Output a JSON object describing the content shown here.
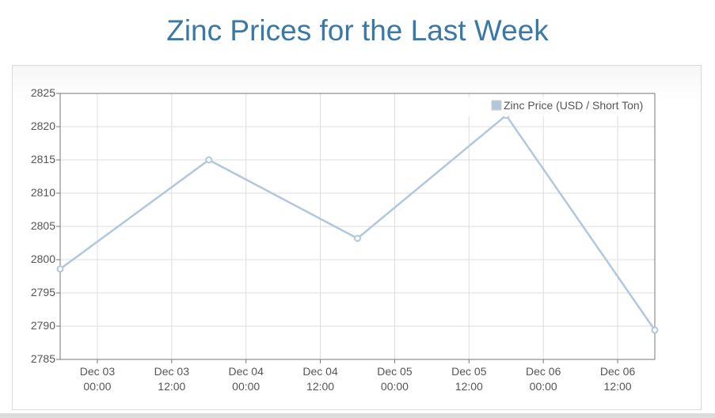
{
  "chart_data": {
    "type": "line",
    "title": "Zinc Prices for the Last Week",
    "x_ticks": [
      {
        "t": 0,
        "line1": "Dec 03",
        "line2": "00:00"
      },
      {
        "t": 12,
        "line1": "Dec 03",
        "line2": "12:00"
      },
      {
        "t": 24,
        "line1": "Dec 04",
        "line2": "00:00"
      },
      {
        "t": 36,
        "line1": "Dec 04",
        "line2": "12:00"
      },
      {
        "t": 48,
        "line1": "Dec 05",
        "line2": "00:00"
      },
      {
        "t": 60,
        "line1": "Dec 05",
        "line2": "12:00"
      },
      {
        "t": 72,
        "line1": "Dec 06",
        "line2": "00:00"
      },
      {
        "t": 84,
        "line1": "Dec 06",
        "line2": "12:00"
      }
    ],
    "xlim": [
      -6,
      90
    ],
    "ylim": [
      2785,
      2825
    ],
    "y_ticks": [
      2785,
      2790,
      2795,
      2800,
      2805,
      2810,
      2815,
      2820,
      2825
    ],
    "grid": true,
    "legend_position": "top-right",
    "series": [
      {
        "name": "Zinc Price (USD / Short Ton)",
        "color": "#b0c7dd",
        "points": [
          {
            "t": -6,
            "y": 2798.6
          },
          {
            "t": 18,
            "y": 2815.0
          },
          {
            "t": 42,
            "y": 2803.2
          },
          {
            "t": 66,
            "y": 2821.7
          },
          {
            "t": 90,
            "y": 2789.4
          }
        ]
      }
    ]
  }
}
